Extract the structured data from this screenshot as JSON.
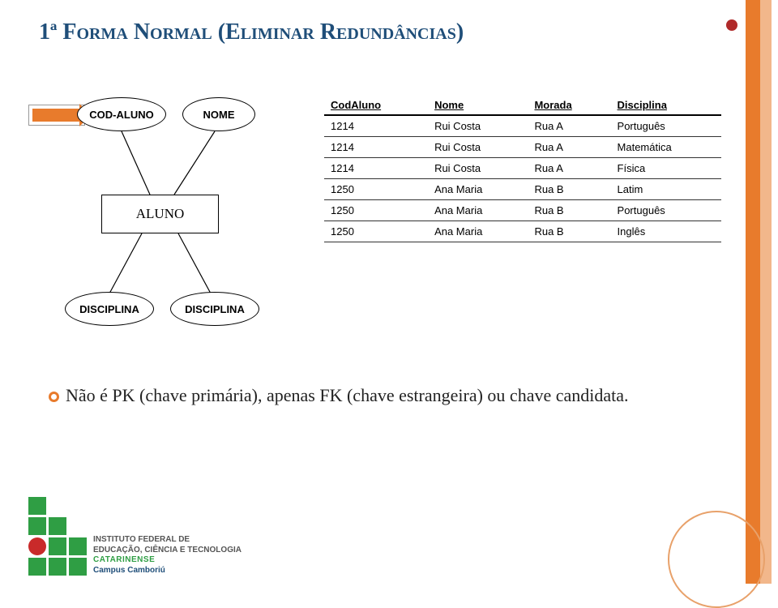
{
  "title": "1ª Forma Normal (Eliminar Redundâncias)",
  "er": {
    "cod_aluno": "COD-ALUNO",
    "nome": "NOME",
    "entity": "ALUNO",
    "disciplina1": "DISCIPLINA",
    "disciplina2": "DISCIPLINA"
  },
  "table": {
    "columns": [
      "CodAluno",
      "Nome",
      "Morada",
      "Disciplina"
    ],
    "rows": [
      [
        "1214",
        "Rui Costa",
        "Rua A",
        "Português"
      ],
      [
        "1214",
        "Rui Costa",
        "Rua A",
        "Matemática"
      ],
      [
        "1214",
        "Rui Costa",
        "Rua A",
        "Física"
      ],
      [
        "1250",
        "Ana Maria",
        "Rua B",
        "Latim"
      ],
      [
        "1250",
        "Ana Maria",
        "Rua B",
        "Português"
      ],
      [
        "1250",
        "Ana Maria",
        "Rua B",
        "Inglês"
      ]
    ],
    "header_bg": "#ffffff",
    "border_color": "#333333"
  },
  "bullet": "Não é PK (chave primária), apenas FK (chave estrangeira) ou chave candidata.",
  "footer": {
    "line1": "INSTITUTO FEDERAL DE",
    "line1b": "EDUCAÇÃO, CIÊNCIA E TECNOLOGIA",
    "line2": "CATARINENSE",
    "line3": "Campus Camboriú"
  },
  "colors": {
    "accent": "#e87b2c",
    "title": "#1f4e79",
    "green": "#2f9e44",
    "red": "#c92a2a"
  }
}
